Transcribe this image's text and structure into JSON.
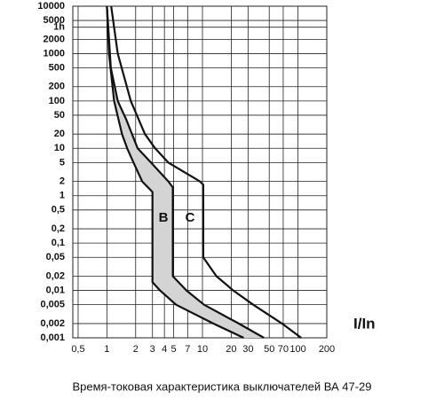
{
  "chart_data": {
    "type": "line",
    "title": "Время-токовая характеристика выключателей ВА 47-29",
    "x_label": "I/In",
    "xscale": "log",
    "yscale": "log",
    "grid": true,
    "xlim": [
      0.44,
      200
    ],
    "ylim": [
      0.001,
      10000
    ],
    "xticks": [
      {
        "value": 0.5,
        "label": "0,5"
      },
      1,
      2,
      3,
      4,
      5,
      7,
      10,
      20,
      30,
      50,
      70,
      100,
      200
    ],
    "yticks": [
      10000,
      5000,
      {
        "value": 3600,
        "label": "1h"
      },
      2000,
      1000,
      500,
      200,
      100,
      50,
      20,
      10,
      5,
      2,
      1,
      {
        "value": 0.5,
        "label": "0,5"
      },
      {
        "value": 0.2,
        "label": "0,2"
      },
      {
        "value": 0.1,
        "label": "0,1"
      },
      {
        "value": 0.05,
        "label": "0,05"
      },
      {
        "value": 0.02,
        "label": "0,02"
      },
      {
        "value": 0.01,
        "label": "0,01"
      },
      {
        "value": 0.005,
        "label": "0,005"
      },
      {
        "value": 0.002,
        "label": "0,002"
      },
      {
        "value": 0.001,
        "label": "0,001"
      }
    ],
    "curves": [
      {
        "name": "B",
        "color": "#111111",
        "fill": "#d4d4d4",
        "bounds": [
          {
            "x": [
              1.0,
              1.05,
              1.19,
              1.44,
              1.63,
              1.9,
              2.34,
              3.0,
              3.0,
              3.6,
              5.3,
              13,
              27
            ],
            "values": [
              10000,
              1000,
              100,
              20,
              10,
              5,
              2,
              1.2,
              0.015,
              0.01,
              0.005,
              0.002,
              0.001
            ]
          },
          {
            "x": [
              1.0,
              1.1,
              1.3,
              1.6,
              2.1,
              2.9,
              4.4,
              4.9,
              4.9,
              6.8,
              10.4,
              24,
              44
            ],
            "values": [
              10000,
              500,
              100,
              40,
              10,
              5,
              2,
              1.5,
              0.02,
              0.01,
              0.005,
              0.002,
              0.001
            ]
          }
        ]
      },
      {
        "name": "C",
        "color": "#111111",
        "bounds": [
          {
            "x": [
              1.11,
              1.3,
              1.78,
              2.5,
              3.2,
              4.4,
              9.4,
              10.2,
              10.2,
              14,
              21,
              34,
              68,
              108
            ],
            "values": [
              10000,
              1000,
              100,
              20,
              10,
              5,
              2,
              1.7,
              0.05,
              0.02,
              0.01,
              0.005,
              0.002,
              0.001
            ]
          }
        ]
      }
    ]
  }
}
